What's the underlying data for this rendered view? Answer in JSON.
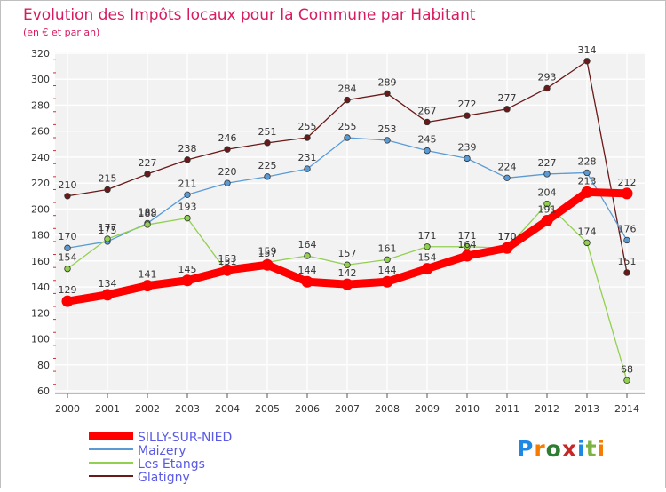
{
  "chart_data": {
    "type": "line",
    "title": "Evolution des Impôts locaux pour la Commune par Habitant",
    "subtitle": "(en € et par an)",
    "xlabel": "",
    "ylabel": "",
    "ylim": [
      60,
      320
    ],
    "yticks": [
      60,
      80,
      100,
      120,
      140,
      160,
      180,
      200,
      220,
      240,
      260,
      280,
      300,
      320
    ],
    "grid": true,
    "legend_position": "bottom-left",
    "categories": [
      "2000",
      "2001",
      "2002",
      "2003",
      "2004",
      "2005",
      "2006",
      "2007",
      "2008",
      "2009",
      "2010",
      "2011",
      "2012",
      "2013",
      "2014"
    ],
    "series": [
      {
        "name": "Glatigny",
        "color": "#6b1818",
        "emphasis": false,
        "values": [
          210,
          215,
          227,
          238,
          246,
          251,
          255,
          284,
          289,
          267,
          272,
          277,
          293,
          314,
          151
        ]
      },
      {
        "name": "Maizery",
        "color": "#5b9bd5",
        "emphasis": false,
        "values": [
          170,
          175,
          189,
          211,
          220,
          225,
          231,
          255,
          253,
          245,
          239,
          224,
          227,
          228,
          176
        ]
      },
      {
        "name": "Les Etangs",
        "color": "#92d050",
        "emphasis": false,
        "values": [
          154,
          177,
          188,
          193,
          151,
          159,
          164,
          157,
          161,
          171,
          171,
          170,
          204,
          174,
          68
        ]
      },
      {
        "name": "SILLY-SUR-NIED",
        "color": "#ff0000",
        "emphasis": true,
        "values": [
          129,
          134,
          141,
          145,
          153,
          157,
          144,
          142,
          144,
          154,
          164,
          170,
          191,
          213,
          212
        ]
      }
    ]
  },
  "legend": {
    "items": [
      {
        "name": "SILLY-SUR-NIED",
        "color": "#ff0000",
        "emphasis": true
      },
      {
        "name": "Maizery",
        "color": "#5b9bd5",
        "emphasis": false
      },
      {
        "name": "Les Etangs",
        "color": "#92d050",
        "emphasis": false
      },
      {
        "name": "Glatigny",
        "color": "#6b1818",
        "emphasis": false
      }
    ]
  },
  "logo": {
    "text": "Proxiti"
  }
}
